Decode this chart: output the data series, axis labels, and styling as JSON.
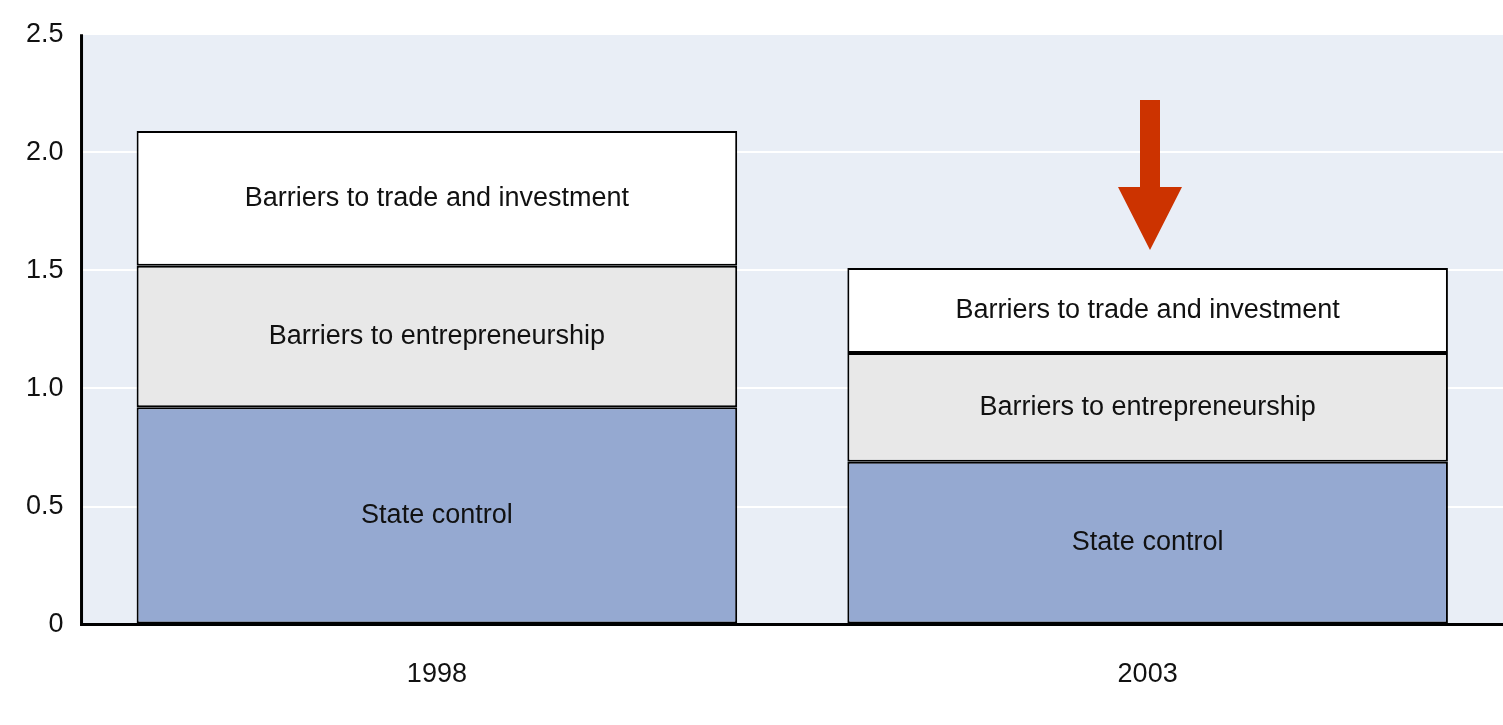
{
  "chart_data": {
    "type": "bar",
    "stacked": true,
    "categories": [
      "1998",
      "2003"
    ],
    "series": [
      {
        "name": "State control",
        "color": "#95a9d1",
        "values": [
          0.92,
          0.69
        ]
      },
      {
        "name": "Barriers to entrepreneurship",
        "color": "#e8e8e8",
        "values": [
          0.6,
          0.46
        ]
      },
      {
        "name": "Barriers to trade and investment",
        "color": "#ffffff",
        "values": [
          0.57,
          0.36
        ]
      }
    ],
    "ylim": [
      0,
      2.5
    ],
    "yticks": [
      {
        "value": 0,
        "label": "0"
      },
      0.5,
      {
        "value": 1,
        "label": "1.0"
      },
      1.5,
      {
        "value": 2,
        "label": "2.0"
      },
      2.5
    ],
    "grid": "y",
    "legend": false
  }
}
